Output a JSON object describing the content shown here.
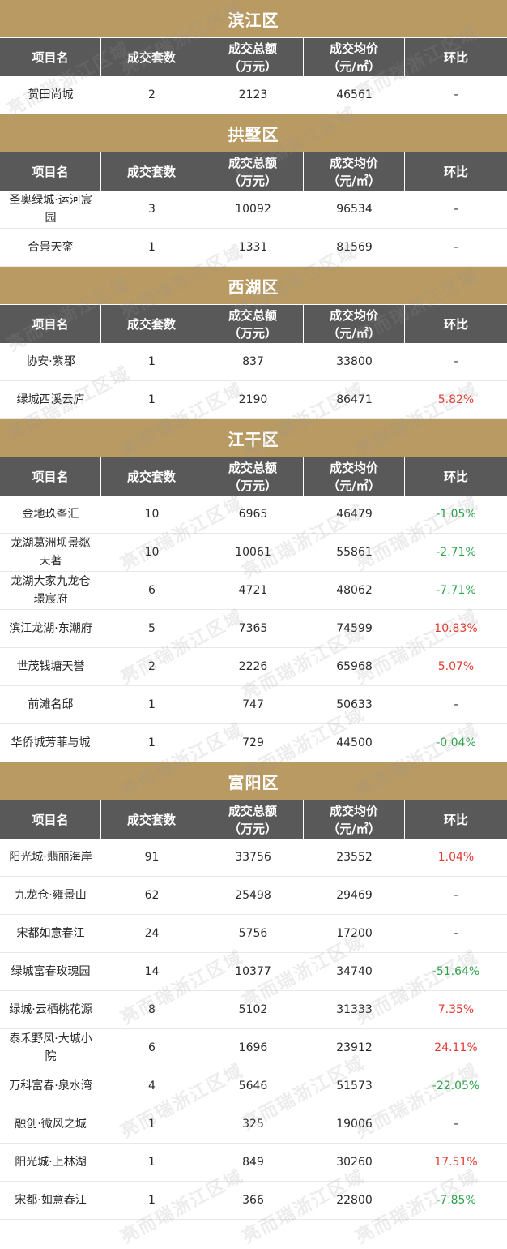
{
  "headers": [
    "项目名",
    "成交套数",
    "成交总额\n（万元）",
    "成交均价\n（元/㎡）",
    "环比"
  ],
  "watermark": "亮而瑞浙江区域",
  "sections": [
    {
      "title": "滨江区",
      "rows": [
        {
          "name": "贺田尚城",
          "units": "2",
          "total": "2123",
          "avg": "46561",
          "change": "-",
          "trend": "none"
        }
      ]
    },
    {
      "title": "拱墅区",
      "rows": [
        {
          "name": "圣奥绿城·运河宸\n园",
          "units": "3",
          "total": "10092",
          "avg": "96534",
          "change": "-",
          "trend": "none"
        },
        {
          "name": "合景天銮",
          "units": "1",
          "total": "1331",
          "avg": "81569",
          "change": "-",
          "trend": "none"
        }
      ]
    },
    {
      "title": "西湖区",
      "rows": [
        {
          "name": "协安·紫郡",
          "units": "1",
          "total": "837",
          "avg": "33800",
          "change": "-",
          "trend": "none"
        },
        {
          "name": "绿城西溪云庐",
          "units": "1",
          "total": "2190",
          "avg": "86471",
          "change": "5.82%",
          "trend": "up"
        }
      ]
    },
    {
      "title": "江干区",
      "rows": [
        {
          "name": "金地玖峯汇",
          "units": "10",
          "total": "6965",
          "avg": "46479",
          "change": "-1.05%",
          "trend": "down"
        },
        {
          "name": "龙湖葛洲坝景粼\n天著",
          "units": "10",
          "total": "10061",
          "avg": "55861",
          "change": "-2.71%",
          "trend": "down"
        },
        {
          "name": "龙湖大家九龙仓\n璟宸府",
          "units": "6",
          "total": "4721",
          "avg": "48062",
          "change": "-7.71%",
          "trend": "down"
        },
        {
          "name": "滨江龙湖·东潮府",
          "units": "5",
          "total": "7365",
          "avg": "74599",
          "change": "10.83%",
          "trend": "up"
        },
        {
          "name": "世茂钱塘天誉",
          "units": "2",
          "total": "2226",
          "avg": "65968",
          "change": "5.07%",
          "trend": "up"
        },
        {
          "name": "前滩名邸",
          "units": "1",
          "total": "747",
          "avg": "50633",
          "change": "-",
          "trend": "none"
        },
        {
          "name": "华侨城芳菲与城",
          "units": "1",
          "total": "729",
          "avg": "44500",
          "change": "-0.04%",
          "trend": "down"
        }
      ]
    },
    {
      "title": "富阳区",
      "rows": [
        {
          "name": "阳光城·翡丽海岸",
          "units": "91",
          "total": "33756",
          "avg": "23552",
          "change": "1.04%",
          "trend": "up"
        },
        {
          "name": "九龙仓·雍景山",
          "units": "62",
          "total": "25498",
          "avg": "29469",
          "change": "-",
          "trend": "none"
        },
        {
          "name": "宋都如意春江",
          "units": "24",
          "total": "5756",
          "avg": "17200",
          "change": "-",
          "trend": "none"
        },
        {
          "name": "绿城富春玫瑰园",
          "units": "14",
          "total": "10377",
          "avg": "34740",
          "change": "-51.64%",
          "trend": "down"
        },
        {
          "name": "绿城·云栖桃花源",
          "units": "8",
          "total": "5102",
          "avg": "31333",
          "change": "7.35%",
          "trend": "up"
        },
        {
          "name": "泰禾野风·大城小\n院",
          "units": "6",
          "total": "1696",
          "avg": "23912",
          "change": "24.11%",
          "trend": "up"
        },
        {
          "name": "万科富春·泉水湾",
          "units": "4",
          "total": "5646",
          "avg": "51573",
          "change": "-22.05%",
          "trend": "down"
        },
        {
          "name": "融创·微风之城",
          "units": "1",
          "total": "325",
          "avg": "19006",
          "change": "-",
          "trend": "none"
        },
        {
          "name": "阳光城·上林湖",
          "units": "1",
          "total": "849",
          "avg": "30260",
          "change": "17.51%",
          "trend": "up"
        },
        {
          "name": "宋都·如意春江",
          "units": "1",
          "total": "366",
          "avg": "22800",
          "change": "-7.85%",
          "trend": "down"
        }
      ]
    }
  ]
}
